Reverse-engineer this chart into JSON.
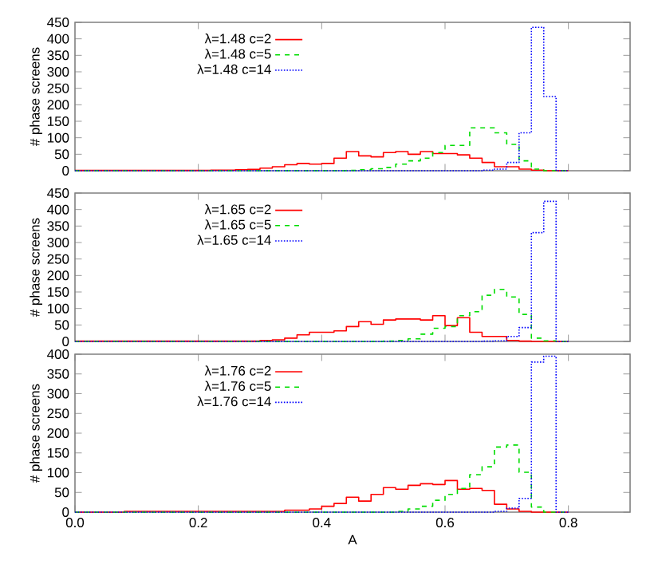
{
  "chart_data": [
    {
      "type": "histogram",
      "ylabel": "# phase screens",
      "legend": "top left",
      "tick_labels": "y",
      "bins": [
        0,
        0.02,
        0.04,
        0.06,
        0.08,
        0.1,
        0.12,
        0.14,
        0.16,
        0.18,
        0.2,
        0.22,
        0.24,
        0.26,
        0.28,
        0.3,
        0.32,
        0.34,
        0.36,
        0.38,
        0.4,
        0.42,
        0.44,
        0.46,
        0.48,
        0.5,
        0.52,
        0.54,
        0.56,
        0.58,
        0.6,
        0.62,
        0.64,
        0.66,
        0.68,
        0.7,
        0.72,
        0.74,
        0.76,
        0.78,
        0.8
      ],
      "series": [
        {
          "name": "λ=1.48 c=2",
          "color": "#ff0000",
          "line_style": "solid",
          "values": [
            1,
            1,
            1,
            1,
            1,
            1,
            1,
            1,
            1,
            1,
            1,
            2,
            2,
            3,
            4,
            8,
            12,
            18,
            22,
            20,
            22,
            38,
            58,
            45,
            42,
            55,
            58,
            50,
            58,
            52,
            52,
            48,
            38,
            25,
            12,
            12,
            5,
            2,
            0,
            0
          ]
        },
        {
          "name": "λ=1.48 c=5",
          "color": "#00dd00",
          "line_style": "dashed",
          "values": [
            0,
            0,
            0,
            0,
            0,
            0,
            0,
            0,
            0,
            0,
            0,
            0,
            0,
            0,
            0,
            0,
            0,
            0,
            0,
            0,
            0,
            0,
            1,
            3,
            6,
            10,
            20,
            30,
            38,
            55,
            77,
            77,
            130,
            130,
            115,
            80,
            30,
            5,
            0,
            0
          ]
        },
        {
          "name": "λ=1.48 c=14",
          "color": "#0000ff",
          "line_style": "dotted",
          "values": [
            0,
            0,
            0,
            0,
            0,
            0,
            0,
            0,
            0,
            0,
            0,
            0,
            0,
            0,
            0,
            0,
            0,
            0,
            0,
            0,
            0,
            0,
            0,
            0,
            0,
            0,
            0,
            0,
            0,
            0,
            0,
            0,
            0,
            2,
            5,
            25,
            115,
            435,
            225,
            0
          ]
        }
      ],
      "xlim": [
        0,
        0.9
      ],
      "xticks": [
        0.2,
        0.4,
        0.6,
        0.8
      ],
      "ylim": [
        0,
        450
      ],
      "yticks": [
        0,
        50,
        100,
        150,
        200,
        250,
        300,
        350,
        400,
        450
      ]
    },
    {
      "type": "histogram",
      "ylabel": "# phase screens",
      "legend": "top left",
      "tick_labels": "y",
      "bins": [
        0,
        0.02,
        0.04,
        0.06,
        0.08,
        0.1,
        0.12,
        0.14,
        0.16,
        0.18,
        0.2,
        0.22,
        0.24,
        0.26,
        0.28,
        0.3,
        0.32,
        0.34,
        0.36,
        0.38,
        0.4,
        0.42,
        0.44,
        0.46,
        0.48,
        0.5,
        0.52,
        0.54,
        0.56,
        0.58,
        0.6,
        0.62,
        0.64,
        0.66,
        0.68,
        0.7,
        0.72,
        0.74,
        0.76,
        0.78,
        0.8
      ],
      "series": [
        {
          "name": "λ=1.65 c=2",
          "color": "#ff0000",
          "line_style": "solid",
          "values": [
            1,
            1,
            1,
            1,
            1,
            1,
            1,
            1,
            1,
            1,
            1,
            1,
            1,
            1,
            1,
            3,
            5,
            10,
            20,
            28,
            28,
            32,
            45,
            60,
            52,
            65,
            68,
            68,
            65,
            78,
            48,
            72,
            28,
            15,
            15,
            3,
            1,
            0,
            0,
            0
          ]
        },
        {
          "name": "λ=1.65 c=5",
          "color": "#00dd00",
          "line_style": "dashed",
          "values": [
            0,
            0,
            0,
            0,
            0,
            0,
            0,
            0,
            0,
            0,
            0,
            0,
            0,
            0,
            0,
            0,
            0,
            0,
            0,
            0,
            0,
            0,
            0,
            0,
            0,
            1,
            3,
            8,
            22,
            40,
            45,
            78,
            90,
            140,
            158,
            135,
            82,
            10,
            2,
            0
          ]
        },
        {
          "name": "λ=1.65 c=14",
          "color": "#0000ff",
          "line_style": "dotted",
          "values": [
            0,
            0,
            0,
            0,
            0,
            0,
            0,
            0,
            0,
            0,
            0,
            0,
            0,
            0,
            0,
            0,
            0,
            0,
            0,
            0,
            0,
            0,
            0,
            0,
            0,
            0,
            0,
            0,
            0,
            0,
            0,
            0,
            0,
            1,
            2,
            15,
            42,
            330,
            425,
            0
          ]
        }
      ],
      "xlim": [
        0,
        0.9
      ],
      "xticks": [
        0.2,
        0.4,
        0.6,
        0.8
      ],
      "ylim": [
        0,
        450
      ],
      "yticks": [
        0,
        50,
        100,
        150,
        200,
        250,
        300,
        350,
        400,
        450
      ]
    },
    {
      "type": "histogram",
      "xlabel": "A",
      "ylabel": "# phase screens",
      "legend": "top left",
      "bins": [
        0,
        0.02,
        0.04,
        0.06,
        0.08,
        0.1,
        0.12,
        0.14,
        0.16,
        0.18,
        0.2,
        0.22,
        0.24,
        0.26,
        0.28,
        0.3,
        0.32,
        0.34,
        0.36,
        0.38,
        0.4,
        0.42,
        0.44,
        0.46,
        0.48,
        0.5,
        0.52,
        0.54,
        0.56,
        0.58,
        0.6,
        0.62,
        0.64,
        0.66,
        0.68,
        0.7,
        0.72,
        0.74,
        0.76,
        0.78,
        0.8
      ],
      "series": [
        {
          "name": "λ=1.76 c=2",
          "color": "#ff0000",
          "line_style": "solid",
          "values": [
            0,
            0,
            0,
            0,
            2,
            2,
            2,
            2,
            2,
            2,
            2,
            2,
            2,
            2,
            2,
            2,
            2,
            5,
            5,
            8,
            15,
            22,
            38,
            28,
            45,
            62,
            58,
            68,
            72,
            70,
            80,
            58,
            60,
            55,
            20,
            8,
            2,
            0,
            0,
            0
          ]
        },
        {
          "name": "λ=1.76 c=5",
          "color": "#00dd00",
          "line_style": "dashed",
          "values": [
            0,
            0,
            0,
            0,
            0,
            0,
            0,
            0,
            0,
            0,
            0,
            0,
            0,
            0,
            0,
            0,
            0,
            0,
            0,
            0,
            0,
            0,
            0,
            0,
            0,
            0,
            2,
            8,
            15,
            30,
            45,
            60,
            95,
            115,
            165,
            170,
            101,
            13,
            0,
            0
          ]
        },
        {
          "name": "λ=1.76 c=14",
          "color": "#0000ff",
          "line_style": "dotted",
          "values": [
            0,
            0,
            0,
            0,
            0,
            0,
            0,
            0,
            0,
            0,
            0,
            0,
            0,
            0,
            0,
            0,
            0,
            0,
            0,
            0,
            0,
            0,
            0,
            0,
            0,
            0,
            0,
            0,
            0,
            0,
            0,
            0,
            0,
            0,
            2,
            10,
            35,
            380,
            395,
            0
          ]
        }
      ],
      "xlim": [
        0,
        0.9
      ],
      "xticks": [
        {
          "value": 0,
          "label": "0.0"
        },
        0.2,
        0.4,
        0.6,
        0.8
      ],
      "ylim": [
        0,
        400
      ],
      "yticks": [
        0,
        50,
        100,
        150,
        200,
        250,
        300,
        350,
        400
      ]
    }
  ]
}
